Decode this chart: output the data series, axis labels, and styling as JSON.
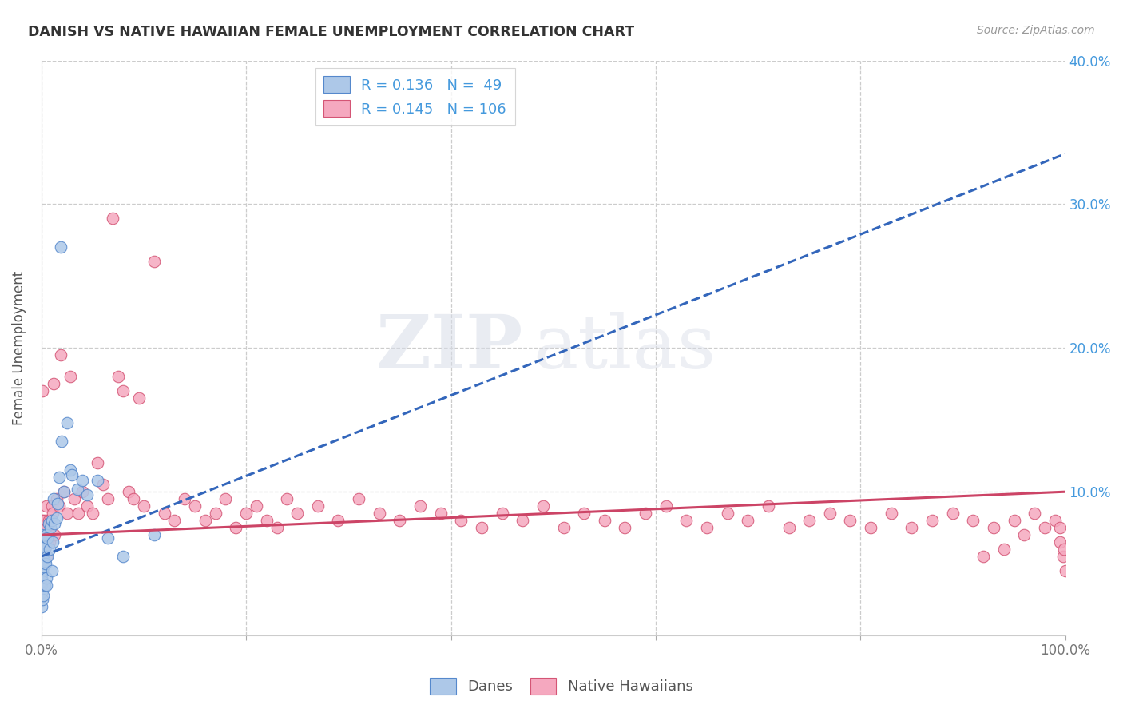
{
  "title": "DANISH VS NATIVE HAWAIIAN FEMALE UNEMPLOYMENT CORRELATION CHART",
  "source": "Source: ZipAtlas.com",
  "ylabel": "Female Unemployment",
  "xlim": [
    0,
    1.0
  ],
  "ylim": [
    0,
    0.4
  ],
  "x_ticks": [
    0.0,
    0.2,
    0.4,
    0.6,
    0.8,
    1.0
  ],
  "x_tick_labels": [
    "0.0%",
    "",
    "",
    "",
    "",
    "100.0%"
  ],
  "y_ticks": [
    0.0,
    0.1,
    0.2,
    0.3,
    0.4
  ],
  "right_y_tick_labels": [
    "",
    "10.0%",
    "20.0%",
    "30.0%",
    "40.0%"
  ],
  "danes_color": "#adc8e8",
  "danes_edge": "#5588cc",
  "native_color": "#f5a8bf",
  "native_edge": "#d45575",
  "danes_R": 0.136,
  "danes_N": 49,
  "native_R": 0.145,
  "native_N": 106,
  "danes_trend_color": "#3366bb",
  "native_trend_color": "#cc4466",
  "watermark_zip": "ZIP",
  "watermark_atlas": "atlas",
  "background_color": "#ffffff",
  "danes_x": [
    0.0,
    0.0,
    0.0,
    0.0,
    0.0,
    0.0,
    0.0,
    0.001,
    0.001,
    0.001,
    0.001,
    0.001,
    0.002,
    0.002,
    0.002,
    0.003,
    0.003,
    0.003,
    0.004,
    0.004,
    0.005,
    0.005,
    0.005,
    0.006,
    0.006,
    0.007,
    0.008,
    0.009,
    0.01,
    0.01,
    0.011,
    0.012,
    0.013,
    0.015,
    0.016,
    0.017,
    0.019,
    0.02,
    0.022,
    0.025,
    0.028,
    0.03,
    0.035,
    0.04,
    0.045,
    0.055,
    0.065,
    0.08,
    0.11
  ],
  "danes_y": [
    0.02,
    0.03,
    0.04,
    0.05,
    0.06,
    0.07,
    0.035,
    0.045,
    0.055,
    0.065,
    0.025,
    0.038,
    0.048,
    0.06,
    0.028,
    0.052,
    0.068,
    0.035,
    0.05,
    0.062,
    0.04,
    0.07,
    0.035,
    0.055,
    0.068,
    0.078,
    0.06,
    0.075,
    0.08,
    0.045,
    0.065,
    0.095,
    0.078,
    0.082,
    0.092,
    0.11,
    0.27,
    0.135,
    0.1,
    0.148,
    0.115,
    0.112,
    0.102,
    0.108,
    0.098,
    0.108,
    0.068,
    0.055,
    0.07
  ],
  "native_x": [
    0.0,
    0.0,
    0.0,
    0.0,
    0.001,
    0.001,
    0.001,
    0.002,
    0.002,
    0.003,
    0.003,
    0.004,
    0.004,
    0.005,
    0.005,
    0.006,
    0.006,
    0.007,
    0.008,
    0.009,
    0.01,
    0.011,
    0.012,
    0.013,
    0.015,
    0.017,
    0.019,
    0.022,
    0.025,
    0.028,
    0.032,
    0.036,
    0.04,
    0.045,
    0.05,
    0.055,
    0.06,
    0.065,
    0.07,
    0.075,
    0.08,
    0.085,
    0.09,
    0.095,
    0.1,
    0.11,
    0.12,
    0.13,
    0.14,
    0.15,
    0.16,
    0.17,
    0.18,
    0.19,
    0.2,
    0.21,
    0.22,
    0.23,
    0.24,
    0.25,
    0.27,
    0.29,
    0.31,
    0.33,
    0.35,
    0.37,
    0.39,
    0.41,
    0.43,
    0.45,
    0.47,
    0.49,
    0.51,
    0.53,
    0.55,
    0.57,
    0.59,
    0.61,
    0.63,
    0.65,
    0.67,
    0.69,
    0.71,
    0.73,
    0.75,
    0.77,
    0.79,
    0.81,
    0.83,
    0.85,
    0.87,
    0.89,
    0.91,
    0.93,
    0.95,
    0.97,
    0.98,
    0.99,
    0.995,
    0.995,
    0.998,
    0.999,
    1.0,
    0.96,
    0.94,
    0.92
  ],
  "native_y": [
    0.08,
    0.065,
    0.07,
    0.06,
    0.075,
    0.055,
    0.17,
    0.065,
    0.08,
    0.07,
    0.06,
    0.075,
    0.08,
    0.055,
    0.09,
    0.065,
    0.075,
    0.08,
    0.065,
    0.08,
    0.09,
    0.085,
    0.175,
    0.07,
    0.095,
    0.09,
    0.195,
    0.1,
    0.085,
    0.18,
    0.095,
    0.085,
    0.1,
    0.09,
    0.085,
    0.12,
    0.105,
    0.095,
    0.29,
    0.18,
    0.17,
    0.1,
    0.095,
    0.165,
    0.09,
    0.26,
    0.085,
    0.08,
    0.095,
    0.09,
    0.08,
    0.085,
    0.095,
    0.075,
    0.085,
    0.09,
    0.08,
    0.075,
    0.095,
    0.085,
    0.09,
    0.08,
    0.095,
    0.085,
    0.08,
    0.09,
    0.085,
    0.08,
    0.075,
    0.085,
    0.08,
    0.09,
    0.075,
    0.085,
    0.08,
    0.075,
    0.085,
    0.09,
    0.08,
    0.075,
    0.085,
    0.08,
    0.09,
    0.075,
    0.08,
    0.085,
    0.08,
    0.075,
    0.085,
    0.075,
    0.08,
    0.085,
    0.08,
    0.075,
    0.08,
    0.085,
    0.075,
    0.08,
    0.075,
    0.065,
    0.055,
    0.06,
    0.045,
    0.07,
    0.06,
    0.055
  ]
}
